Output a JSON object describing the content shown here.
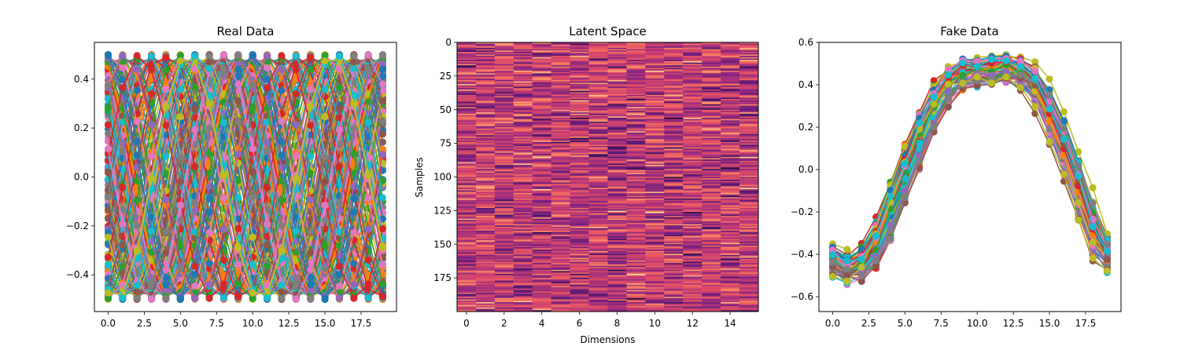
{
  "palette": [
    "#1f77b4",
    "#ff7f0e",
    "#2ca02c",
    "#d62728",
    "#9467bd",
    "#8c564b",
    "#e377c2",
    "#7f7f7f",
    "#bcbd22",
    "#17becf"
  ],
  "chart_data": [
    {
      "type": "line",
      "title": "Real Data",
      "xlabel": "",
      "ylabel": "",
      "xlim": [
        -0.95,
        19.95
      ],
      "ylim": [
        -0.55,
        0.55
      ],
      "xticks": [
        0,
        2.5,
        5,
        7.5,
        10,
        12.5,
        15,
        17.5
      ],
      "xtick_labels": [
        "0.0",
        "2.5",
        "5.0",
        "7.5",
        "10.0",
        "12.5",
        "15.0",
        "17.5"
      ],
      "yticks": [
        0.4,
        0.2,
        0.0,
        -0.2,
        -0.4
      ],
      "ytick_labels": [
        "0.4",
        "0.2",
        "0.0",
        "−0.2",
        "−0.4"
      ],
      "x": [
        0,
        1,
        2,
        3,
        4,
        5,
        6,
        7,
        8,
        9,
        10,
        11,
        12,
        13,
        14,
        15,
        16,
        17,
        18,
        19
      ],
      "markers": true,
      "series_count": 200,
      "description_of_series": "Sine waves of amplitude 0.5 with random phase and period about 10 samples, sampled at x = 0..19"
    },
    {
      "type": "heatmap",
      "title": "Latent Space",
      "xlabel": "Dimensions",
      "ylabel": "Samples",
      "rows": 200,
      "cols": 16,
      "xticks": [
        0,
        2,
        4,
        6,
        8,
        10,
        12,
        14
      ],
      "xtick_labels": [
        "0",
        "2",
        "4",
        "6",
        "8",
        "10",
        "12",
        "14"
      ],
      "yticks": [
        0,
        25,
        50,
        75,
        100,
        125,
        150,
        175
      ],
      "ytick_labels": [
        "0",
        "25",
        "50",
        "75",
        "100",
        "125",
        "150",
        "175"
      ],
      "colormap": "magma"
    },
    {
      "type": "line",
      "title": "Fake Data",
      "xlabel": "",
      "ylabel": "",
      "xlim": [
        -0.95,
        19.95
      ],
      "ylim": [
        -0.67,
        0.6
      ],
      "xticks": [
        0,
        2.5,
        5,
        7.5,
        10,
        12.5,
        15,
        17.5
      ],
      "xtick_labels": [
        "0.0",
        "2.5",
        "5.0",
        "7.5",
        "10.0",
        "12.5",
        "15.0",
        "17.5"
      ],
      "yticks": [
        0.6,
        0.4,
        0.2,
        0.0,
        -0.2,
        -0.4,
        -0.6
      ],
      "ytick_labels": [
        "0.6",
        "0.4",
        "0.2",
        "0.0",
        "−0.2",
        "−0.4",
        "−0.6"
      ],
      "x": [
        0,
        1,
        2,
        3,
        4,
        5,
        6,
        7,
        8,
        9,
        10,
        11,
        12,
        13,
        14,
        15,
        16,
        17,
        18,
        19
      ],
      "markers": true,
      "series_count": 60,
      "mean_curve": [
        -0.42,
        -0.48,
        -0.46,
        -0.37,
        -0.2,
        -0.02,
        0.15,
        0.3,
        0.41,
        0.46,
        0.46,
        0.47,
        0.48,
        0.47,
        0.42,
        0.28,
        0.13,
        -0.06,
        -0.28,
        -0.42
      ]
    }
  ]
}
